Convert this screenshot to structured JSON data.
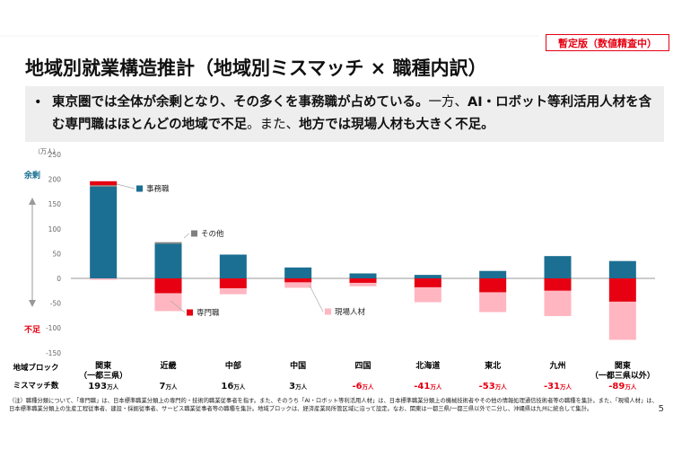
{
  "header": {
    "badge": "暫定版（数値精査中）",
    "title": "地域別就業構造推計（地域別ミスマッチ × 職種内訳）",
    "bullet": [
      {
        "text": "東京圏では全体が余剰となり、その多くを事務職が占めている。",
        "bold": true
      },
      {
        "text": "一方、",
        "bold": false
      },
      {
        "text": "AI・ロボット等利活用人材を含む専門職はほとんどの地域で不足",
        "bold": true
      },
      {
        "text": "。また、",
        "bold": false
      },
      {
        "text": "地方では現場人材も大きく不足。",
        "bold": true
      }
    ]
  },
  "chart_data": {
    "type": "stacked_bar",
    "y_unit": "（万人）",
    "surplus_label": "余剰",
    "shortage_label": "不足",
    "ylim": [
      -150,
      250
    ],
    "yticks": [
      -150,
      -100,
      -50,
      0,
      50,
      100,
      150,
      200,
      250
    ],
    "grid": false,
    "row_label": "地域ブロック",
    "categories": [
      "関東\n（一都三県）",
      "近畿",
      "中部",
      "中国",
      "四国",
      "北海道",
      "東北",
      "九州",
      "関東\n（一都三県以外）"
    ],
    "series": [
      {
        "name": "事務職",
        "color": "#1b6f92",
        "values": [
          185,
          70,
          48,
          22,
          10,
          7,
          15,
          45,
          35
        ]
      },
      {
        "name": "その他",
        "color": "#808080",
        "values": [
          3,
          3,
          0,
          0,
          0,
          0,
          0,
          0,
          0
        ]
      },
      {
        "name": "専門職",
        "color": "#e60012",
        "values": [
          8,
          -30,
          -20,
          -8,
          -9,
          -18,
          -28,
          -25,
          -47
        ]
      },
      {
        "name": "現場人材",
        "color": "#ffb6c1",
        "values": [
          -3,
          -36,
          -12,
          -11,
          -7,
          -30,
          -40,
          -51,
          -77
        ]
      }
    ],
    "mismatch": {
      "label": "ミスマッチ数",
      "unit": "万人",
      "values": [
        193,
        7,
        16,
        3,
        -6,
        -41,
        -53,
        -31,
        -89
      ]
    }
  },
  "footnote": [
    "（注）職種分類について、「専門職」は、日本標準職業分類上の専門的・技術的職業従事者を指す。また、そのうち「AI・ロボット等利活用人材」は、日本標準職業分類上の機械技術者やその他の情報処理通信技術者等の職種を集計。また、「現場人材」は、",
    "日本標準職業分類上の生産工程従事者、建設・採掘従事者、サービス職業従事者等の職種を集計。地域ブロックは、経済産業局所管区域に沿って設定。なお、関東は一都三県/一都三県以外で二分し、沖縄県は九州に統合して集計。"
  ],
  "page_number": "5"
}
